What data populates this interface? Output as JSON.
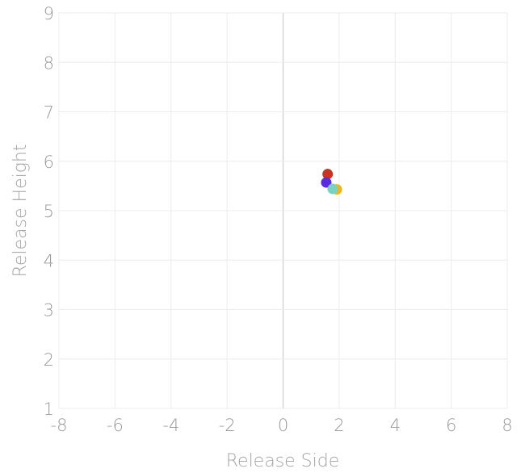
{
  "chart_data": {
    "type": "scatter",
    "title": "",
    "xlabel": "Release Side",
    "ylabel": "Release Height",
    "xlim": [
      -8,
      8
    ],
    "ylim": [
      1,
      9
    ],
    "x_ticks": [
      "-8",
      "-6",
      "-4",
      "-2",
      "0",
      "2",
      "4",
      "6",
      "8"
    ],
    "y_ticks": [
      "1",
      "2",
      "3",
      "4",
      "5",
      "6",
      "7",
      "8",
      "9"
    ],
    "grid": true,
    "legend": "none",
    "points": [
      {
        "x": 1.59,
        "y": 5.74,
        "color": "#c8321e"
      },
      {
        "x": 1.54,
        "y": 5.57,
        "color": "#5a2be0"
      },
      {
        "x": 1.92,
        "y": 5.43,
        "color": "#f0b51a"
      },
      {
        "x": 1.77,
        "y": 5.44,
        "color": "#7ad2c0"
      }
    ]
  }
}
